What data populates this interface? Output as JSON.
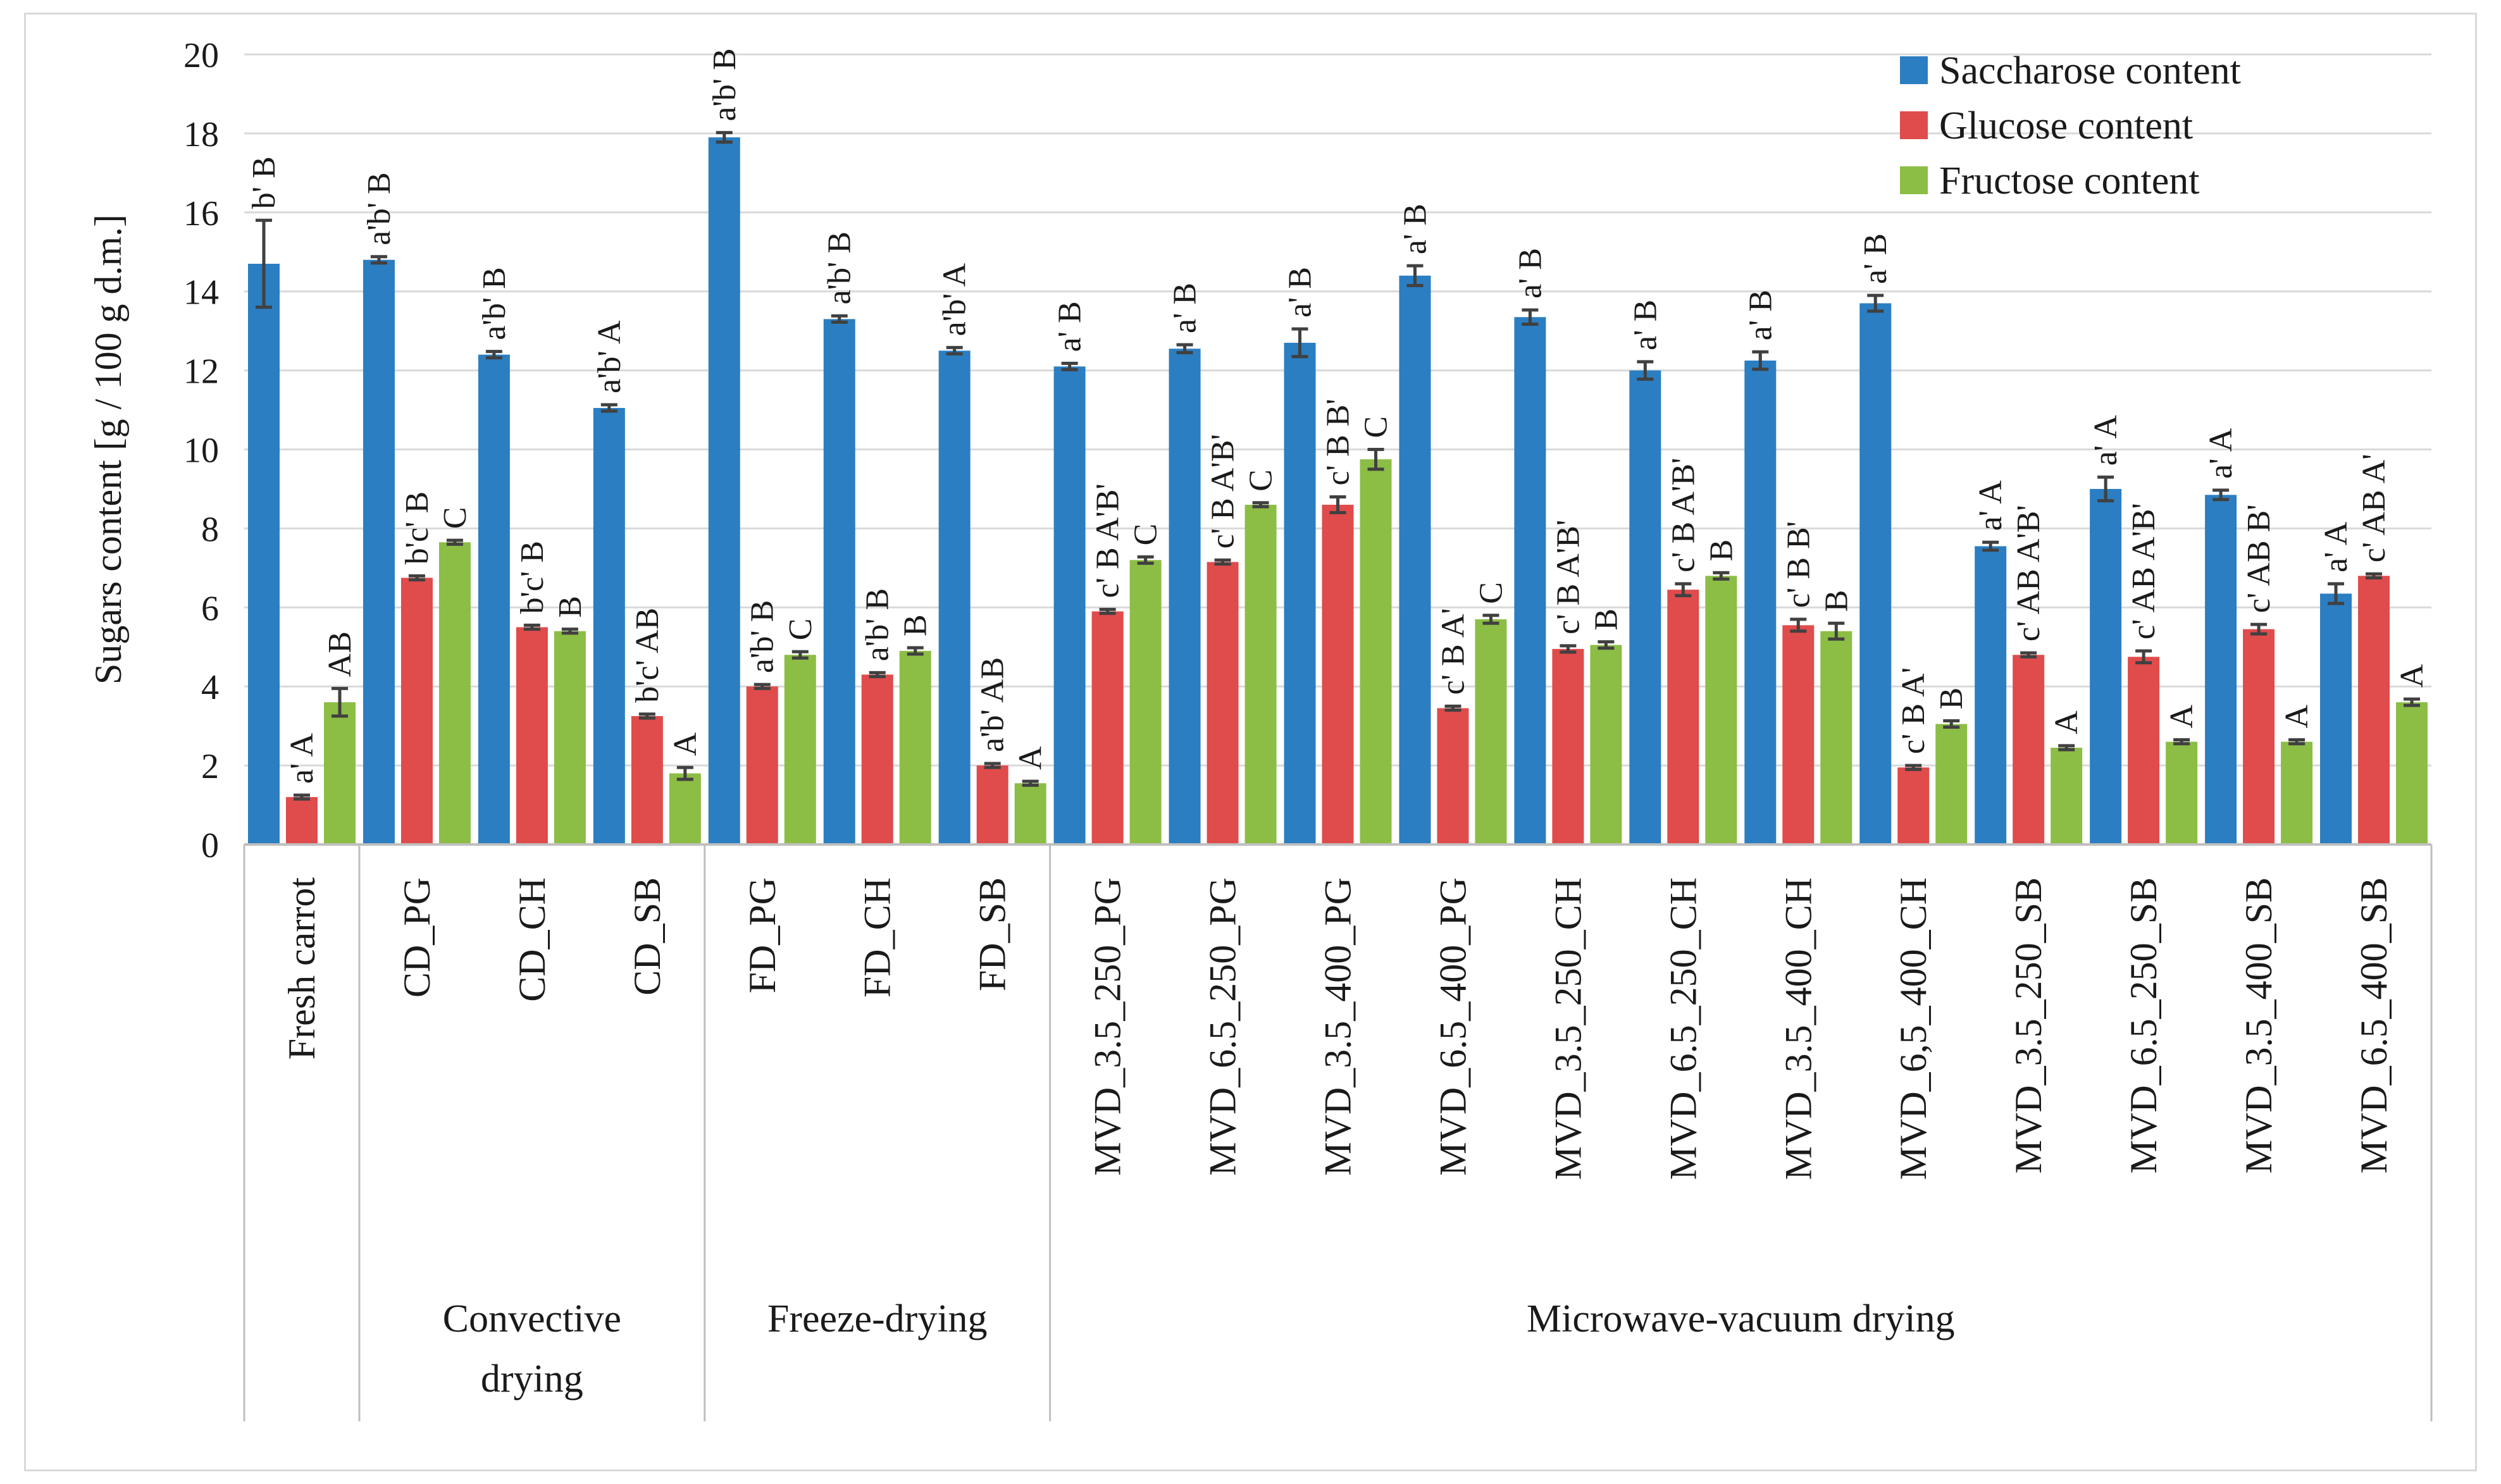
{
  "chart_data": {
    "type": "bar",
    "ylabel": "Sugars content  [g / 100 g d.m.]",
    "ylim": [
      0,
      20
    ],
    "yticks": [
      0,
      2,
      4,
      6,
      8,
      10,
      12,
      14,
      16,
      18,
      20
    ],
    "grid": "horizontal",
    "legend_position": "top-right",
    "categories": [
      "Fresh carrot",
      "CD_PG",
      "CD_CH",
      "CD_SB",
      "FD_PG",
      "FD_CH",
      "FD_SB",
      "MVD_3.5_250_PG",
      "MVD_6.5_250_PG",
      "MVD_3.5_400_PG",
      "MVD_6.5_400_PG",
      "MVD_3.5_250_CH",
      "MVD_6.5_250_CH",
      "MVD_3.5_400_CH",
      "MVD_6,5_400_CH",
      "MVD_3.5_250_SB",
      "MVD_6.5_250_SB",
      "MVD_3.5_400_SB",
      "MVD_6.5_400_SB"
    ],
    "groups": [
      {
        "label_lines": [],
        "start": 0,
        "end": 0
      },
      {
        "label_lines": [
          "Convective",
          "drying"
        ],
        "start": 1,
        "end": 3
      },
      {
        "label_lines": [
          "Freeze-drying"
        ],
        "start": 4,
        "end": 6
      },
      {
        "label_lines": [
          "Microwave-vacuum drying"
        ],
        "start": 7,
        "end": 18
      }
    ],
    "series": [
      {
        "name": "Saccharose content",
        "color": "#2b7ec1",
        "values": [
          14.7,
          14.8,
          12.4,
          11.05,
          17.9,
          13.3,
          12.5,
          12.1,
          12.55,
          12.7,
          14.4,
          13.35,
          12.0,
          12.25,
          13.7,
          7.55,
          9.0,
          8.85,
          6.35
        ],
        "errors": [
          1.1,
          0.08,
          0.08,
          0.08,
          0.12,
          0.08,
          0.08,
          0.08,
          0.1,
          0.35,
          0.25,
          0.18,
          0.22,
          0.22,
          0.2,
          0.1,
          0.3,
          0.12,
          0.25
        ],
        "labels": [
          "b' B",
          "a'b' B",
          "a'b' B",
          "a'b' A",
          "a'b' B",
          "a'b' B",
          "a'b' A",
          "a' B",
          "a' B",
          "a' B",
          "a' B",
          "a' B",
          "a' B",
          "a' B",
          "a' B",
          "a' A",
          "a' A",
          "a' A",
          "a' A"
        ]
      },
      {
        "name": "Glucose content",
        "color": "#e04b4b",
        "values": [
          1.2,
          6.75,
          5.5,
          3.25,
          4.0,
          4.3,
          2.0,
          5.9,
          7.15,
          8.6,
          3.45,
          4.95,
          6.45,
          5.55,
          1.95,
          4.8,
          4.75,
          5.45,
          6.8
        ],
        "errors": [
          0.05,
          0.05,
          0.05,
          0.05,
          0.05,
          0.05,
          0.05,
          0.05,
          0.05,
          0.2,
          0.05,
          0.08,
          0.15,
          0.15,
          0.05,
          0.05,
          0.15,
          0.12,
          0.05
        ],
        "labels": [
          "a' A",
          "b'c' B",
          "b'c' B",
          "b'c' AB",
          "a'b' B",
          "a'b' B",
          "a'b' AB",
          "c' B A'B'",
          "c' B A'B'",
          "c' B B'",
          "c' B A'",
          "c' B A'B'",
          "c' B A'B'",
          "c' B B'",
          "c' B A'",
          "c' AB A'B'",
          "c' AB A'B'",
          "c' AB B'",
          "c' AB A'"
        ]
      },
      {
        "name": "Fructose content",
        "color": "#8cbd45",
        "values": [
          3.6,
          7.65,
          5.4,
          1.8,
          4.8,
          4.9,
          1.55,
          7.2,
          8.6,
          9.75,
          5.7,
          5.05,
          6.8,
          5.4,
          3.05,
          2.45,
          2.6,
          2.6,
          3.6
        ],
        "errors": [
          0.35,
          0.05,
          0.05,
          0.15,
          0.08,
          0.08,
          0.05,
          0.08,
          0.05,
          0.25,
          0.1,
          0.08,
          0.08,
          0.2,
          0.08,
          0.05,
          0.05,
          0.05,
          0.08
        ],
        "labels": [
          "AB",
          "C",
          "B",
          "A",
          "C",
          "B",
          "A",
          "C",
          "C",
          "C",
          "C",
          "B",
          "B",
          "B",
          "B",
          "A",
          "A",
          "A",
          "A"
        ]
      }
    ]
  }
}
